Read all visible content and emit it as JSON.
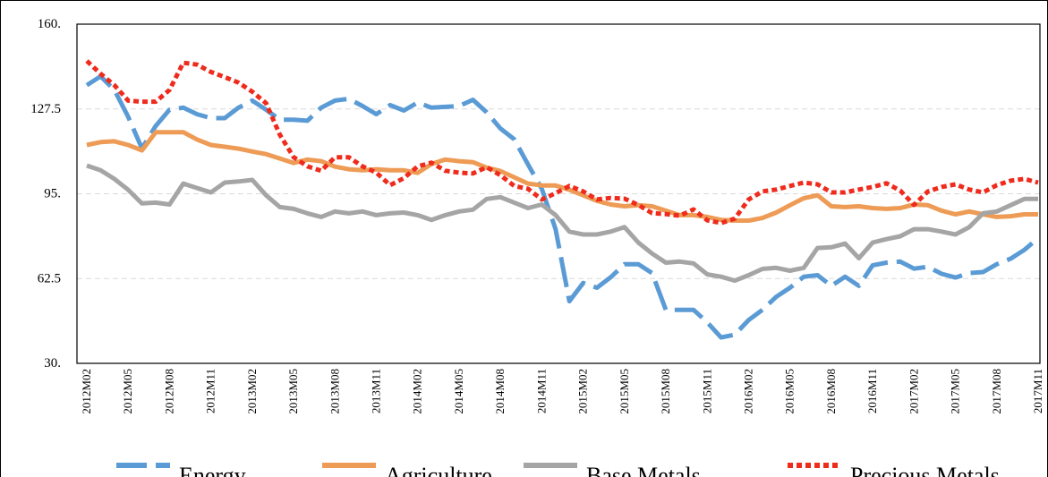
{
  "chart_data": {
    "type": "line",
    "categories": [
      "2012M02",
      null,
      null,
      "2012M05",
      null,
      null,
      "2012M08",
      null,
      null,
      "2012M11",
      null,
      null,
      "2013M02",
      null,
      null,
      "2013M05",
      null,
      null,
      "2013M08",
      null,
      null,
      "2013M11",
      null,
      null,
      "2014M02",
      null,
      null,
      "2014M05",
      null,
      null,
      "2014M08",
      null,
      null,
      "2014M11",
      null,
      null,
      "2015M02",
      null,
      null,
      "2015M05",
      null,
      null,
      "2015M08",
      null,
      null,
      "2015M11",
      null,
      null,
      "2016M02",
      null,
      null,
      "2016M05",
      null,
      null,
      "2016M08",
      null,
      null,
      "2016M11",
      null,
      null,
      "2017M02",
      null,
      null,
      "2017M05",
      null,
      null,
      "2017M08",
      null,
      null,
      "2017M11"
    ],
    "series": [
      {
        "name": "Energy",
        "color": "#5b9bd5",
        "dash": "dashed",
        "values": [
          136.6,
          140,
          134.8,
          124.5,
          112.4,
          121,
          127.2,
          128,
          125.5,
          124,
          124,
          128,
          130.7,
          127.2,
          123.4,
          123.4,
          123,
          128,
          130.7,
          131.4,
          128.6,
          125.5,
          129,
          126.9,
          130,
          128,
          128.3,
          128.6,
          131,
          126.2,
          120,
          115.9,
          106.2,
          96.9,
          81.4,
          53.8,
          60.8,
          59,
          63,
          68,
          68,
          64.6,
          50.5,
          50.5,
          50.5,
          45.7,
          39.9,
          41,
          46.6,
          50.5,
          55.5,
          59,
          63.2,
          63.8,
          59.7,
          63.2,
          59.7,
          67.6,
          68.6,
          69,
          66.3,
          67,
          64.3,
          62.9,
          64.6,
          65,
          68,
          70.1,
          73.5,
          78
        ]
      },
      {
        "name": "Agriculture",
        "color": "#ed9b55",
        "dash": "solid",
        "values": [
          113.7,
          114.8,
          115.1,
          113.7,
          111.6,
          118.6,
          118.6,
          118.6,
          115.8,
          113.7,
          113,
          112.3,
          111.2,
          110.2,
          108.5,
          106.8,
          108.1,
          107.5,
          105.4,
          104.4,
          104,
          104.4,
          104,
          104,
          103,
          106.4,
          108.1,
          107.5,
          107.1,
          105,
          103.7,
          101.3,
          98.9,
          98.2,
          98.2,
          96.5,
          94.4,
          92.3,
          90.9,
          90.2,
          90.6,
          90.2,
          88.5,
          86.8,
          86.8,
          86.1,
          85,
          84.7,
          84.7,
          85.7,
          87.8,
          90.6,
          93.3,
          94.4,
          90.2,
          89.9,
          90.2,
          89.5,
          89.2,
          89.5,
          90.9,
          90.6,
          88.5,
          87.1,
          88.2,
          87.1,
          86.1,
          86.4,
          87.1,
          87.1
        ]
      },
      {
        "name": "Base Metals",
        "color": "#a5a5a5",
        "dash": "solid",
        "values": [
          105.8,
          104,
          100.7,
          96.5,
          91.3,
          91.6,
          90.9,
          98.9,
          97.2,
          95.5,
          99.3,
          99.7,
          100.3,
          94.4,
          89.9,
          89.2,
          87.5,
          86.1,
          88.2,
          87.5,
          88.2,
          86.8,
          87.5,
          87.8,
          86.8,
          85,
          86.8,
          88.2,
          88.9,
          93,
          93.7,
          91.6,
          89.5,
          90.9,
          86.8,
          80.5,
          79.4,
          79.4,
          80.5,
          82.2,
          76.3,
          72.1,
          68.6,
          69,
          68.3,
          64.1,
          63.2,
          61.7,
          63.8,
          66.2,
          66.6,
          65.5,
          66.6,
          74.2,
          74.5,
          75.9,
          70.3,
          76.3,
          77.6,
          78.7,
          81.4,
          81.4,
          80.5,
          79.4,
          82.2,
          87.5,
          88.2,
          90.6,
          93,
          93
        ]
      },
      {
        "name": "Precious Metals",
        "color": "#ee2b1c",
        "dash": "dotted",
        "values": [
          145.9,
          141,
          136.6,
          130.7,
          130.3,
          130.3,
          134.8,
          145.2,
          144.5,
          141.7,
          139.7,
          137.6,
          134.1,
          129.7,
          117.6,
          109,
          105.5,
          103.8,
          109,
          109,
          105.5,
          103.1,
          98.3,
          101,
          105.5,
          106.9,
          103.8,
          103.1,
          102.8,
          105.2,
          102.1,
          98,
          96.9,
          92.8,
          95.2,
          98,
          95.9,
          92.8,
          93.4,
          93.1,
          90.7,
          87.6,
          87.2,
          86.6,
          89,
          84.8,
          83.8,
          85.5,
          92.8,
          95.9,
          96.6,
          98,
          99.3,
          98.6,
          95.5,
          95.5,
          96.6,
          97.6,
          99,
          96.2,
          90.7,
          95.9,
          97.6,
          98.6,
          96.6,
          95.5,
          98.3,
          100,
          100.7,
          99.3
        ]
      }
    ],
    "ylim": [
      30,
      160
    ],
    "yticks": [
      {
        "value": 30,
        "label": "30."
      },
      {
        "value": 62.5,
        "label": "62.5"
      },
      {
        "value": 95,
        "label": "95."
      },
      {
        "value": 127.5,
        "label": "127.5"
      },
      {
        "value": 160,
        "label": "160."
      }
    ],
    "grid": true,
    "legend": "bottom"
  }
}
